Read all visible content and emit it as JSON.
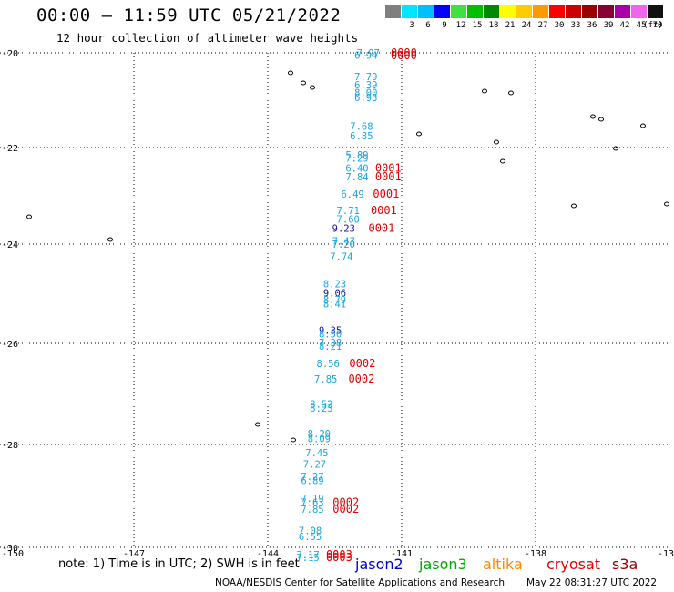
{
  "header": {
    "title": "00:00 – 11:59 UTC 05/21/2022",
    "subtitle": "12 hour collection of altimeter wave heights"
  },
  "color_scale": {
    "unit_label": "(ft)",
    "bins": [
      {
        "label": "",
        "color": "#7f7f7f"
      },
      {
        "label": "3",
        "color": "#00e5ff"
      },
      {
        "label": "6",
        "color": "#00bfff"
      },
      {
        "label": "9",
        "color": "#0000ff"
      },
      {
        "label": "12",
        "color": "#3fe03f"
      },
      {
        "label": "15",
        "color": "#00c000"
      },
      {
        "label": "18",
        "color": "#008800"
      },
      {
        "label": "21",
        "color": "#ffff00"
      },
      {
        "label": "24",
        "color": "#ffcc00"
      },
      {
        "label": "27",
        "color": "#ff9900"
      },
      {
        "label": "30",
        "color": "#ff0000"
      },
      {
        "label": "33",
        "color": "#cc0000"
      },
      {
        "label": "36",
        "color": "#990000"
      },
      {
        "label": "39",
        "color": "#880033"
      },
      {
        "label": "42",
        "color": "#aa00aa"
      },
      {
        "label": "45",
        "color": "#ee66ee"
      },
      {
        "label": "70",
        "color": "#111111"
      }
    ]
  },
  "axes": {
    "lat_labels": [
      "-20",
      "-22",
      "-24",
      "-26",
      "-28",
      "-30"
    ],
    "lon_labels": [
      "-150",
      "-147",
      "-144",
      "-141",
      "-138",
      "-13"
    ]
  },
  "observations": [
    {
      "lat": -20.0,
      "lon": -141.75,
      "text": "7.97",
      "color": "#1aa6e0"
    },
    {
      "lat": -20.05,
      "lon": -141.8,
      "text": "6.94",
      "color": "#1aa6e0"
    },
    {
      "lat": -20.0,
      "lon": -140.95,
      "text": "0000",
      "color": "#e00000"
    },
    {
      "lat": -20.06,
      "lon": -140.95,
      "text": "0000",
      "color": "#e00000"
    },
    {
      "lat": -20.5,
      "lon": -141.8,
      "text": "7.79",
      "color": "#1aa6e0"
    },
    {
      "lat": -20.67,
      "lon": -141.8,
      "text": "6.39",
      "color": "#1aa6e0"
    },
    {
      "lat": -20.84,
      "lon": -141.8,
      "text": "8.00",
      "color": "#1aa6e0"
    },
    {
      "lat": -20.94,
      "lon": -141.8,
      "text": "6.93",
      "color": "#1aa6e0"
    },
    {
      "lat": -21.55,
      "lon": -141.9,
      "text": "7.68",
      "color": "#1aa6e0"
    },
    {
      "lat": -21.75,
      "lon": -141.9,
      "text": "6.85",
      "color": "#1aa6e0"
    },
    {
      "lat": -22.15,
      "lon": -142.0,
      "text": "5.89",
      "color": "#1aa6e0"
    },
    {
      "lat": -22.22,
      "lon": -142.0,
      "text": "7.29",
      "color": "#1aa6e0"
    },
    {
      "lat": -22.42,
      "lon": -142.0,
      "text": "6.40",
      "color": "#1aa6e0"
    },
    {
      "lat": -22.42,
      "lon": -141.3,
      "text": "0001",
      "color": "#e00000"
    },
    {
      "lat": -22.6,
      "lon": -142.0,
      "text": "7.84",
      "color": "#1aa6e0"
    },
    {
      "lat": -22.6,
      "lon": -141.3,
      "text": "0001",
      "color": "#e00000"
    },
    {
      "lat": -22.96,
      "lon": -142.1,
      "text": "6.49",
      "color": "#1aa6e0"
    },
    {
      "lat": -22.96,
      "lon": -141.35,
      "text": "0001",
      "color": "#e00000"
    },
    {
      "lat": -23.3,
      "lon": -142.2,
      "text": "7.71",
      "color": "#1aa6e0"
    },
    {
      "lat": -23.3,
      "lon": -141.4,
      "text": "0001",
      "color": "#e00000"
    },
    {
      "lat": -23.48,
      "lon": -142.2,
      "text": "7.60",
      "color": "#1aa6e0"
    },
    {
      "lat": -23.67,
      "lon": -142.3,
      "text": "9.23",
      "color": "#1414a0"
    },
    {
      "lat": -23.67,
      "lon": -141.45,
      "text": "0001",
      "color": "#e00000"
    },
    {
      "lat": -23.93,
      "lon": -142.3,
      "text": "7.47",
      "color": "#1aa6e0"
    },
    {
      "lat": -24.0,
      "lon": -142.3,
      "text": "7.20",
      "color": "#1aa6e0"
    },
    {
      "lat": -24.25,
      "lon": -142.35,
      "text": "7.74",
      "color": "#1aa6e0"
    },
    {
      "lat": -24.8,
      "lon": -142.5,
      "text": "8.23",
      "color": "#1aa6e0"
    },
    {
      "lat": -24.98,
      "lon": -142.5,
      "text": "9.06",
      "color": "#1414a0"
    },
    {
      "lat": -25.12,
      "lon": -142.5,
      "text": "8.79",
      "color": "#1aa6e0"
    },
    {
      "lat": -25.2,
      "lon": -142.5,
      "text": "8.41",
      "color": "#1aa6e0"
    },
    {
      "lat": -25.73,
      "lon": -142.6,
      "text": "9.35",
      "color": "#1414a0"
    },
    {
      "lat": -25.81,
      "lon": -142.6,
      "text": "8.50",
      "color": "#1aa6e0"
    },
    {
      "lat": -25.98,
      "lon": -142.6,
      "text": "7.38",
      "color": "#1aa6e0"
    },
    {
      "lat": -26.05,
      "lon": -142.6,
      "text": "8.21",
      "color": "#1aa6e0"
    },
    {
      "lat": -26.4,
      "lon": -142.65,
      "text": "8.56",
      "color": "#1aa6e0"
    },
    {
      "lat": -26.4,
      "lon": -141.88,
      "text": "0002",
      "color": "#e00000"
    },
    {
      "lat": -26.7,
      "lon": -142.7,
      "text": "7.85",
      "color": "#1aa6e0"
    },
    {
      "lat": -26.7,
      "lon": -141.9,
      "text": "0002",
      "color": "#e00000"
    },
    {
      "lat": -27.2,
      "lon": -142.8,
      "text": "8.52",
      "color": "#1aa6e0"
    },
    {
      "lat": -27.28,
      "lon": -142.8,
      "text": "8.23",
      "color": "#1aa6e0"
    },
    {
      "lat": -27.78,
      "lon": -142.85,
      "text": "8.20",
      "color": "#1aa6e0"
    },
    {
      "lat": -27.88,
      "lon": -142.85,
      "text": "8.09",
      "color": "#1aa6e0"
    },
    {
      "lat": -28.16,
      "lon": -142.9,
      "text": "7.45",
      "color": "#1aa6e0"
    },
    {
      "lat": -28.38,
      "lon": -142.95,
      "text": "7.27",
      "color": "#1aa6e0"
    },
    {
      "lat": -28.62,
      "lon": -143.0,
      "text": "7.27",
      "color": "#1aa6e0"
    },
    {
      "lat": -28.7,
      "lon": -143.0,
      "text": "6.89",
      "color": "#1aa6e0"
    },
    {
      "lat": -29.04,
      "lon": -143.0,
      "text": "7.19",
      "color": "#1aa6e0"
    },
    {
      "lat": -29.12,
      "lon": -143.0,
      "text": "7.63",
      "color": "#1aa6e0"
    },
    {
      "lat": -29.12,
      "lon": -142.25,
      "text": "0002",
      "color": "#e00000"
    },
    {
      "lat": -29.26,
      "lon": -143.0,
      "text": "7.85",
      "color": "#1aa6e0"
    },
    {
      "lat": -29.26,
      "lon": -142.25,
      "text": "0002",
      "color": "#e00000"
    },
    {
      "lat": -29.67,
      "lon": -143.05,
      "text": "7.08",
      "color": "#1aa6e0"
    },
    {
      "lat": -29.79,
      "lon": -143.05,
      "text": "6.55",
      "color": "#1aa6e0"
    },
    {
      "lat": -30.14,
      "lon": -143.1,
      "text": "7.17",
      "color": "#1aa6e0"
    },
    {
      "lat": -30.2,
      "lon": -143.1,
      "text": "7.15",
      "color": "#1aa6e0"
    },
    {
      "lat": -30.14,
      "lon": -142.4,
      "text": "0003",
      "color": "#e00000"
    },
    {
      "lat": -30.2,
      "lon": -142.4,
      "text": "0003",
      "color": "#e00000"
    }
  ],
  "footer": {
    "note": "note: 1) Time is in UTC; 2) SWH is in feet",
    "legend": [
      {
        "label": "jason2",
        "color": "#0000dd"
      },
      {
        "label": "jason3",
        "color": "#00aa00"
      },
      {
        "label": "altika",
        "color": "#ff8800"
      },
      {
        "label": "cryosat",
        "color": "#ee0000"
      },
      {
        "label": "s3a",
        "color": "#990000"
      }
    ],
    "credit": "NOAA/NESDIS Center for Satellite Applications and Research",
    "timestamp": "May 22 08:31:27 UTC 2022"
  }
}
